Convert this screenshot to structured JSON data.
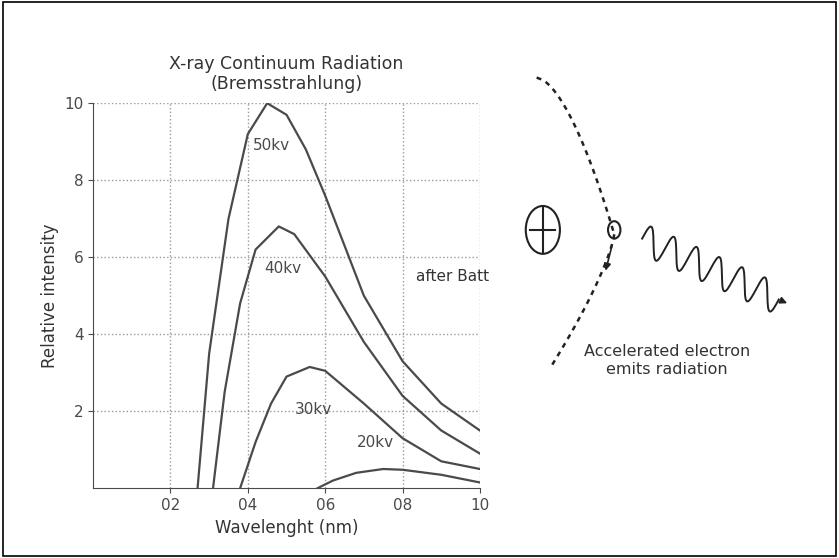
{
  "chart_data": {
    "type": "line",
    "title": "X-ray Continuum Radiation\n(Bremsstrahlung)",
    "x_label": "Wavelenght (nm)",
    "y_label": "Relative intensity",
    "xlim": [
      0,
      1.0
    ],
    "ylim": [
      0,
      10
    ],
    "xticks": [
      {
        "value": 0.2,
        "label": "02"
      },
      {
        "value": 0.4,
        "label": "04"
      },
      {
        "value": 0.6,
        "label": "06"
      },
      {
        "value": 0.8,
        "label": "08"
      },
      {
        "value": 1.0,
        "label": "10"
      }
    ],
    "yticks": [
      2,
      4,
      6,
      8,
      10
    ],
    "grid": true,
    "color": "#4a4a4a",
    "series": [
      {
        "name": "50kv",
        "x": [
          0.27,
          0.3,
          0.35,
          0.4,
          0.45,
          0.5,
          0.55,
          0.6,
          0.7,
          0.8,
          0.9,
          1.0
        ],
        "values": [
          0,
          3.5,
          7.0,
          9.2,
          10.0,
          9.7,
          8.8,
          7.6,
          5.0,
          3.3,
          2.2,
          1.5
        ]
      },
      {
        "name": "40kv",
        "x": [
          0.31,
          0.34,
          0.38,
          0.42,
          0.48,
          0.52,
          0.6,
          0.7,
          0.8,
          0.9,
          1.0
        ],
        "values": [
          0,
          2.5,
          4.8,
          6.2,
          6.8,
          6.6,
          5.5,
          3.8,
          2.4,
          1.5,
          0.9
        ]
      },
      {
        "name": "30kv",
        "x": [
          0.38,
          0.42,
          0.46,
          0.5,
          0.56,
          0.6,
          0.7,
          0.8,
          0.9,
          1.0
        ],
        "values": [
          0,
          1.2,
          2.2,
          2.9,
          3.15,
          3.05,
          2.2,
          1.3,
          0.7,
          0.5
        ]
      },
      {
        "name": "20kv",
        "x": [
          0.58,
          0.62,
          0.68,
          0.75,
          0.8,
          0.9,
          1.0
        ],
        "values": [
          0,
          0.2,
          0.4,
          0.5,
          0.48,
          0.35,
          0.15
        ]
      }
    ],
    "annotations": [
      "after Batt"
    ]
  },
  "diagram": {
    "caption": "Accelerated electron\nemits radiation"
  }
}
